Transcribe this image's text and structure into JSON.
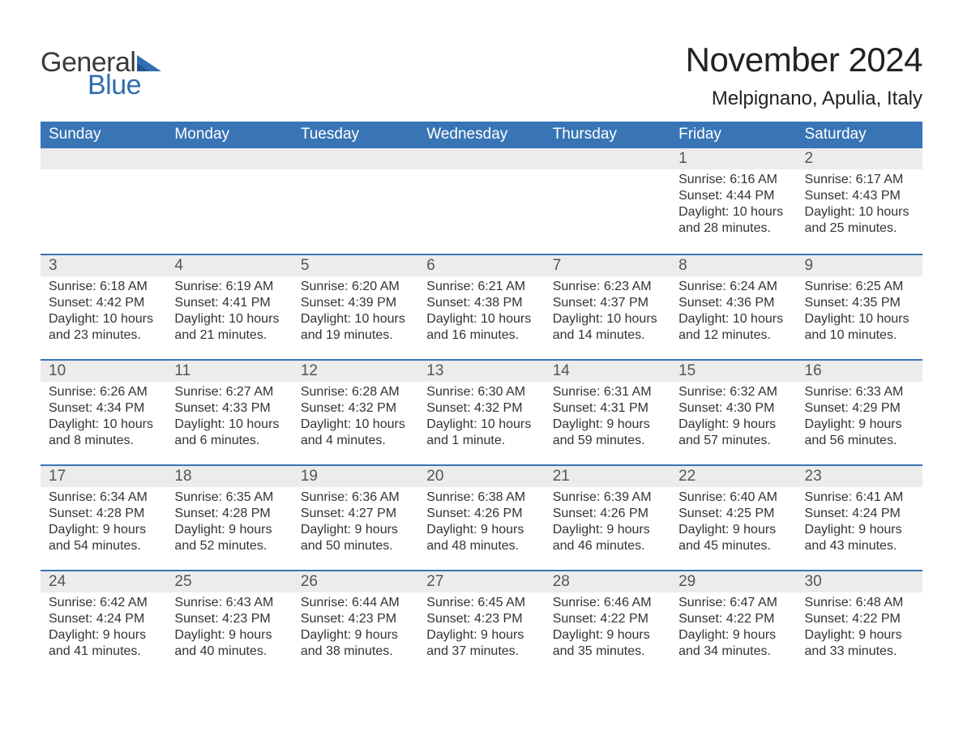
{
  "brand": {
    "word1": "General",
    "word2": "Blue"
  },
  "title": "November 2024",
  "location": "Melpignano, Apulia, Italy",
  "colors": {
    "header_bg": "#3975b5",
    "header_text": "#ffffff",
    "daynum_bg": "#ececec",
    "row_border": "#3975b5",
    "body_text": "#333333",
    "logo_blue": "#2f6eb0",
    "page_bg": "#ffffff"
  },
  "columns": [
    "Sunday",
    "Monday",
    "Tuesday",
    "Wednesday",
    "Thursday",
    "Friday",
    "Saturday"
  ],
  "weeks": [
    [
      null,
      null,
      null,
      null,
      null,
      {
        "n": "1",
        "sr": "6:16 AM",
        "ss": "4:44 PM",
        "d1": "10 hours",
        "d2": "and 28 minutes."
      },
      {
        "n": "2",
        "sr": "6:17 AM",
        "ss": "4:43 PM",
        "d1": "10 hours",
        "d2": "and 25 minutes."
      }
    ],
    [
      {
        "n": "3",
        "sr": "6:18 AM",
        "ss": "4:42 PM",
        "d1": "10 hours",
        "d2": "and 23 minutes."
      },
      {
        "n": "4",
        "sr": "6:19 AM",
        "ss": "4:41 PM",
        "d1": "10 hours",
        "d2": "and 21 minutes."
      },
      {
        "n": "5",
        "sr": "6:20 AM",
        "ss": "4:39 PM",
        "d1": "10 hours",
        "d2": "and 19 minutes."
      },
      {
        "n": "6",
        "sr": "6:21 AM",
        "ss": "4:38 PM",
        "d1": "10 hours",
        "d2": "and 16 minutes."
      },
      {
        "n": "7",
        "sr": "6:23 AM",
        "ss": "4:37 PM",
        "d1": "10 hours",
        "d2": "and 14 minutes."
      },
      {
        "n": "8",
        "sr": "6:24 AM",
        "ss": "4:36 PM",
        "d1": "10 hours",
        "d2": "and 12 minutes."
      },
      {
        "n": "9",
        "sr": "6:25 AM",
        "ss": "4:35 PM",
        "d1": "10 hours",
        "d2": "and 10 minutes."
      }
    ],
    [
      {
        "n": "10",
        "sr": "6:26 AM",
        "ss": "4:34 PM",
        "d1": "10 hours",
        "d2": "and 8 minutes."
      },
      {
        "n": "11",
        "sr": "6:27 AM",
        "ss": "4:33 PM",
        "d1": "10 hours",
        "d2": "and 6 minutes."
      },
      {
        "n": "12",
        "sr": "6:28 AM",
        "ss": "4:32 PM",
        "d1": "10 hours",
        "d2": "and 4 minutes."
      },
      {
        "n": "13",
        "sr": "6:30 AM",
        "ss": "4:32 PM",
        "d1": "10 hours",
        "d2": "and 1 minute."
      },
      {
        "n": "14",
        "sr": "6:31 AM",
        "ss": "4:31 PM",
        "d1": "9 hours",
        "d2": "and 59 minutes."
      },
      {
        "n": "15",
        "sr": "6:32 AM",
        "ss": "4:30 PM",
        "d1": "9 hours",
        "d2": "and 57 minutes."
      },
      {
        "n": "16",
        "sr": "6:33 AM",
        "ss": "4:29 PM",
        "d1": "9 hours",
        "d2": "and 56 minutes."
      }
    ],
    [
      {
        "n": "17",
        "sr": "6:34 AM",
        "ss": "4:28 PM",
        "d1": "9 hours",
        "d2": "and 54 minutes."
      },
      {
        "n": "18",
        "sr": "6:35 AM",
        "ss": "4:28 PM",
        "d1": "9 hours",
        "d2": "and 52 minutes."
      },
      {
        "n": "19",
        "sr": "6:36 AM",
        "ss": "4:27 PM",
        "d1": "9 hours",
        "d2": "and 50 minutes."
      },
      {
        "n": "20",
        "sr": "6:38 AM",
        "ss": "4:26 PM",
        "d1": "9 hours",
        "d2": "and 48 minutes."
      },
      {
        "n": "21",
        "sr": "6:39 AM",
        "ss": "4:26 PM",
        "d1": "9 hours",
        "d2": "and 46 minutes."
      },
      {
        "n": "22",
        "sr": "6:40 AM",
        "ss": "4:25 PM",
        "d1": "9 hours",
        "d2": "and 45 minutes."
      },
      {
        "n": "23",
        "sr": "6:41 AM",
        "ss": "4:24 PM",
        "d1": "9 hours",
        "d2": "and 43 minutes."
      }
    ],
    [
      {
        "n": "24",
        "sr": "6:42 AM",
        "ss": "4:24 PM",
        "d1": "9 hours",
        "d2": "and 41 minutes."
      },
      {
        "n": "25",
        "sr": "6:43 AM",
        "ss": "4:23 PM",
        "d1": "9 hours",
        "d2": "and 40 minutes."
      },
      {
        "n": "26",
        "sr": "6:44 AM",
        "ss": "4:23 PM",
        "d1": "9 hours",
        "d2": "and 38 minutes."
      },
      {
        "n": "27",
        "sr": "6:45 AM",
        "ss": "4:23 PM",
        "d1": "9 hours",
        "d2": "and 37 minutes."
      },
      {
        "n": "28",
        "sr": "6:46 AM",
        "ss": "4:22 PM",
        "d1": "9 hours",
        "d2": "and 35 minutes."
      },
      {
        "n": "29",
        "sr": "6:47 AM",
        "ss": "4:22 PM",
        "d1": "9 hours",
        "d2": "and 34 minutes."
      },
      {
        "n": "30",
        "sr": "6:48 AM",
        "ss": "4:22 PM",
        "d1": "9 hours",
        "d2": "and 33 minutes."
      }
    ]
  ],
  "labels": {
    "sunrise": "Sunrise: ",
    "sunset": "Sunset: ",
    "daylight": "Daylight: "
  }
}
